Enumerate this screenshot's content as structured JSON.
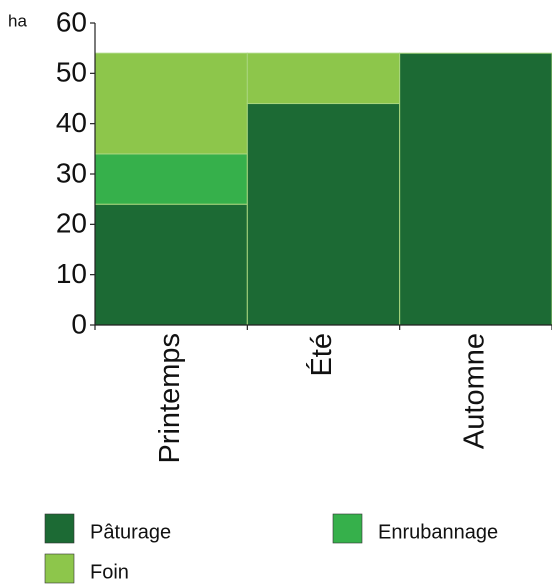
{
  "chart_data": {
    "type": "stacked_bar",
    "y_label": "ha",
    "categories": [
      "Printemps",
      "Été",
      "Automne"
    ],
    "series": [
      {
        "name": "Pâturage",
        "color": "#1c6a34",
        "values": [
          24,
          44,
          54
        ]
      },
      {
        "name": "Enrubannage",
        "color": "#36b04b",
        "values": [
          10,
          0,
          0
        ]
      },
      {
        "name": "Foin",
        "color": "#8dc64b",
        "values": [
          20,
          10,
          0
        ]
      }
    ],
    "ylim": [
      0,
      60
    ],
    "yticks": [
      0,
      10,
      20,
      30,
      40,
      50,
      60
    ]
  }
}
